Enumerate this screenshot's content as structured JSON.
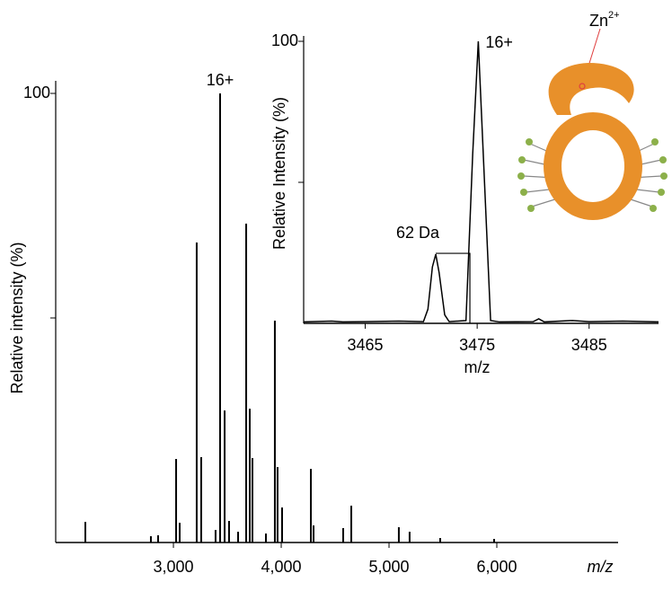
{
  "chart_data": [
    {
      "type": "stem",
      "xlabel": "m/z",
      "ylabel": "Relative intensity (%)",
      "peak_label": "16+",
      "x": [
        2183,
        2791,
        2858,
        3025,
        3058,
        3216,
        3258,
        3391,
        3433,
        3475,
        3516,
        3600,
        3675,
        3708,
        3733,
        3858,
        3941,
        3966,
        4008,
        4275,
        4300,
        4575,
        4650,
        5091,
        5191,
        5475,
        5975
      ],
      "values": [
        4.6,
        1.4,
        1.6,
        18.6,
        4.4,
        66.8,
        19,
        2.8,
        100,
        29.4,
        4.8,
        2.4,
        71,
        29.8,
        18.8,
        2,
        49.4,
        16.8,
        7.8,
        16.4,
        3.8,
        3.2,
        8.2,
        3.4,
        2.4,
        1,
        0.8
      ],
      "color": "#000000",
      "xlim": [
        1908,
        7125
      ],
      "xticks": [
        {
          "value": 3000,
          "label": "3,000"
        },
        {
          "value": 4000,
          "label": "4,000"
        },
        {
          "value": 5000,
          "label": "5,000"
        },
        {
          "value": 6000,
          "label": "6,000"
        }
      ],
      "ylim": [
        0,
        100
      ],
      "yticks": [
        100
      ],
      "yminorticks": [
        50
      ]
    },
    {
      "type": "line",
      "xlabel": "m/z",
      "ylabel": "Relative Intensity (%)",
      "peak_label": "16+",
      "shift_label": "62 Da",
      "x": [
        3459.5,
        3462,
        3463,
        3465,
        3468,
        3470.2,
        3470.6,
        3471,
        3471.3,
        3471.6,
        3472.1,
        3472.5,
        3474,
        3474.6,
        3475.1,
        3475.6,
        3476.2,
        3477,
        3480,
        3480.5,
        3481,
        3483.5,
        3485,
        3488,
        3491.2
      ],
      "values": [
        0.5,
        0.8,
        0.5,
        0.6,
        0.8,
        0.6,
        5,
        20,
        24.5,
        18,
        3,
        0.6,
        1,
        60,
        100,
        55,
        1,
        0.5,
        0.6,
        1.6,
        0.5,
        1,
        0.6,
        0.8,
        0.5
      ],
      "color": "#000000",
      "xlim": [
        3459.5,
        3491.2
      ],
      "xticks": [
        3465,
        3475,
        3485
      ],
      "ylim": [
        0,
        100
      ],
      "yticks": [
        100
      ],
      "yminorticks": [
        50
      ],
      "icon_label": {
        "text": "Zn",
        "superscript": "2+"
      }
    }
  ]
}
